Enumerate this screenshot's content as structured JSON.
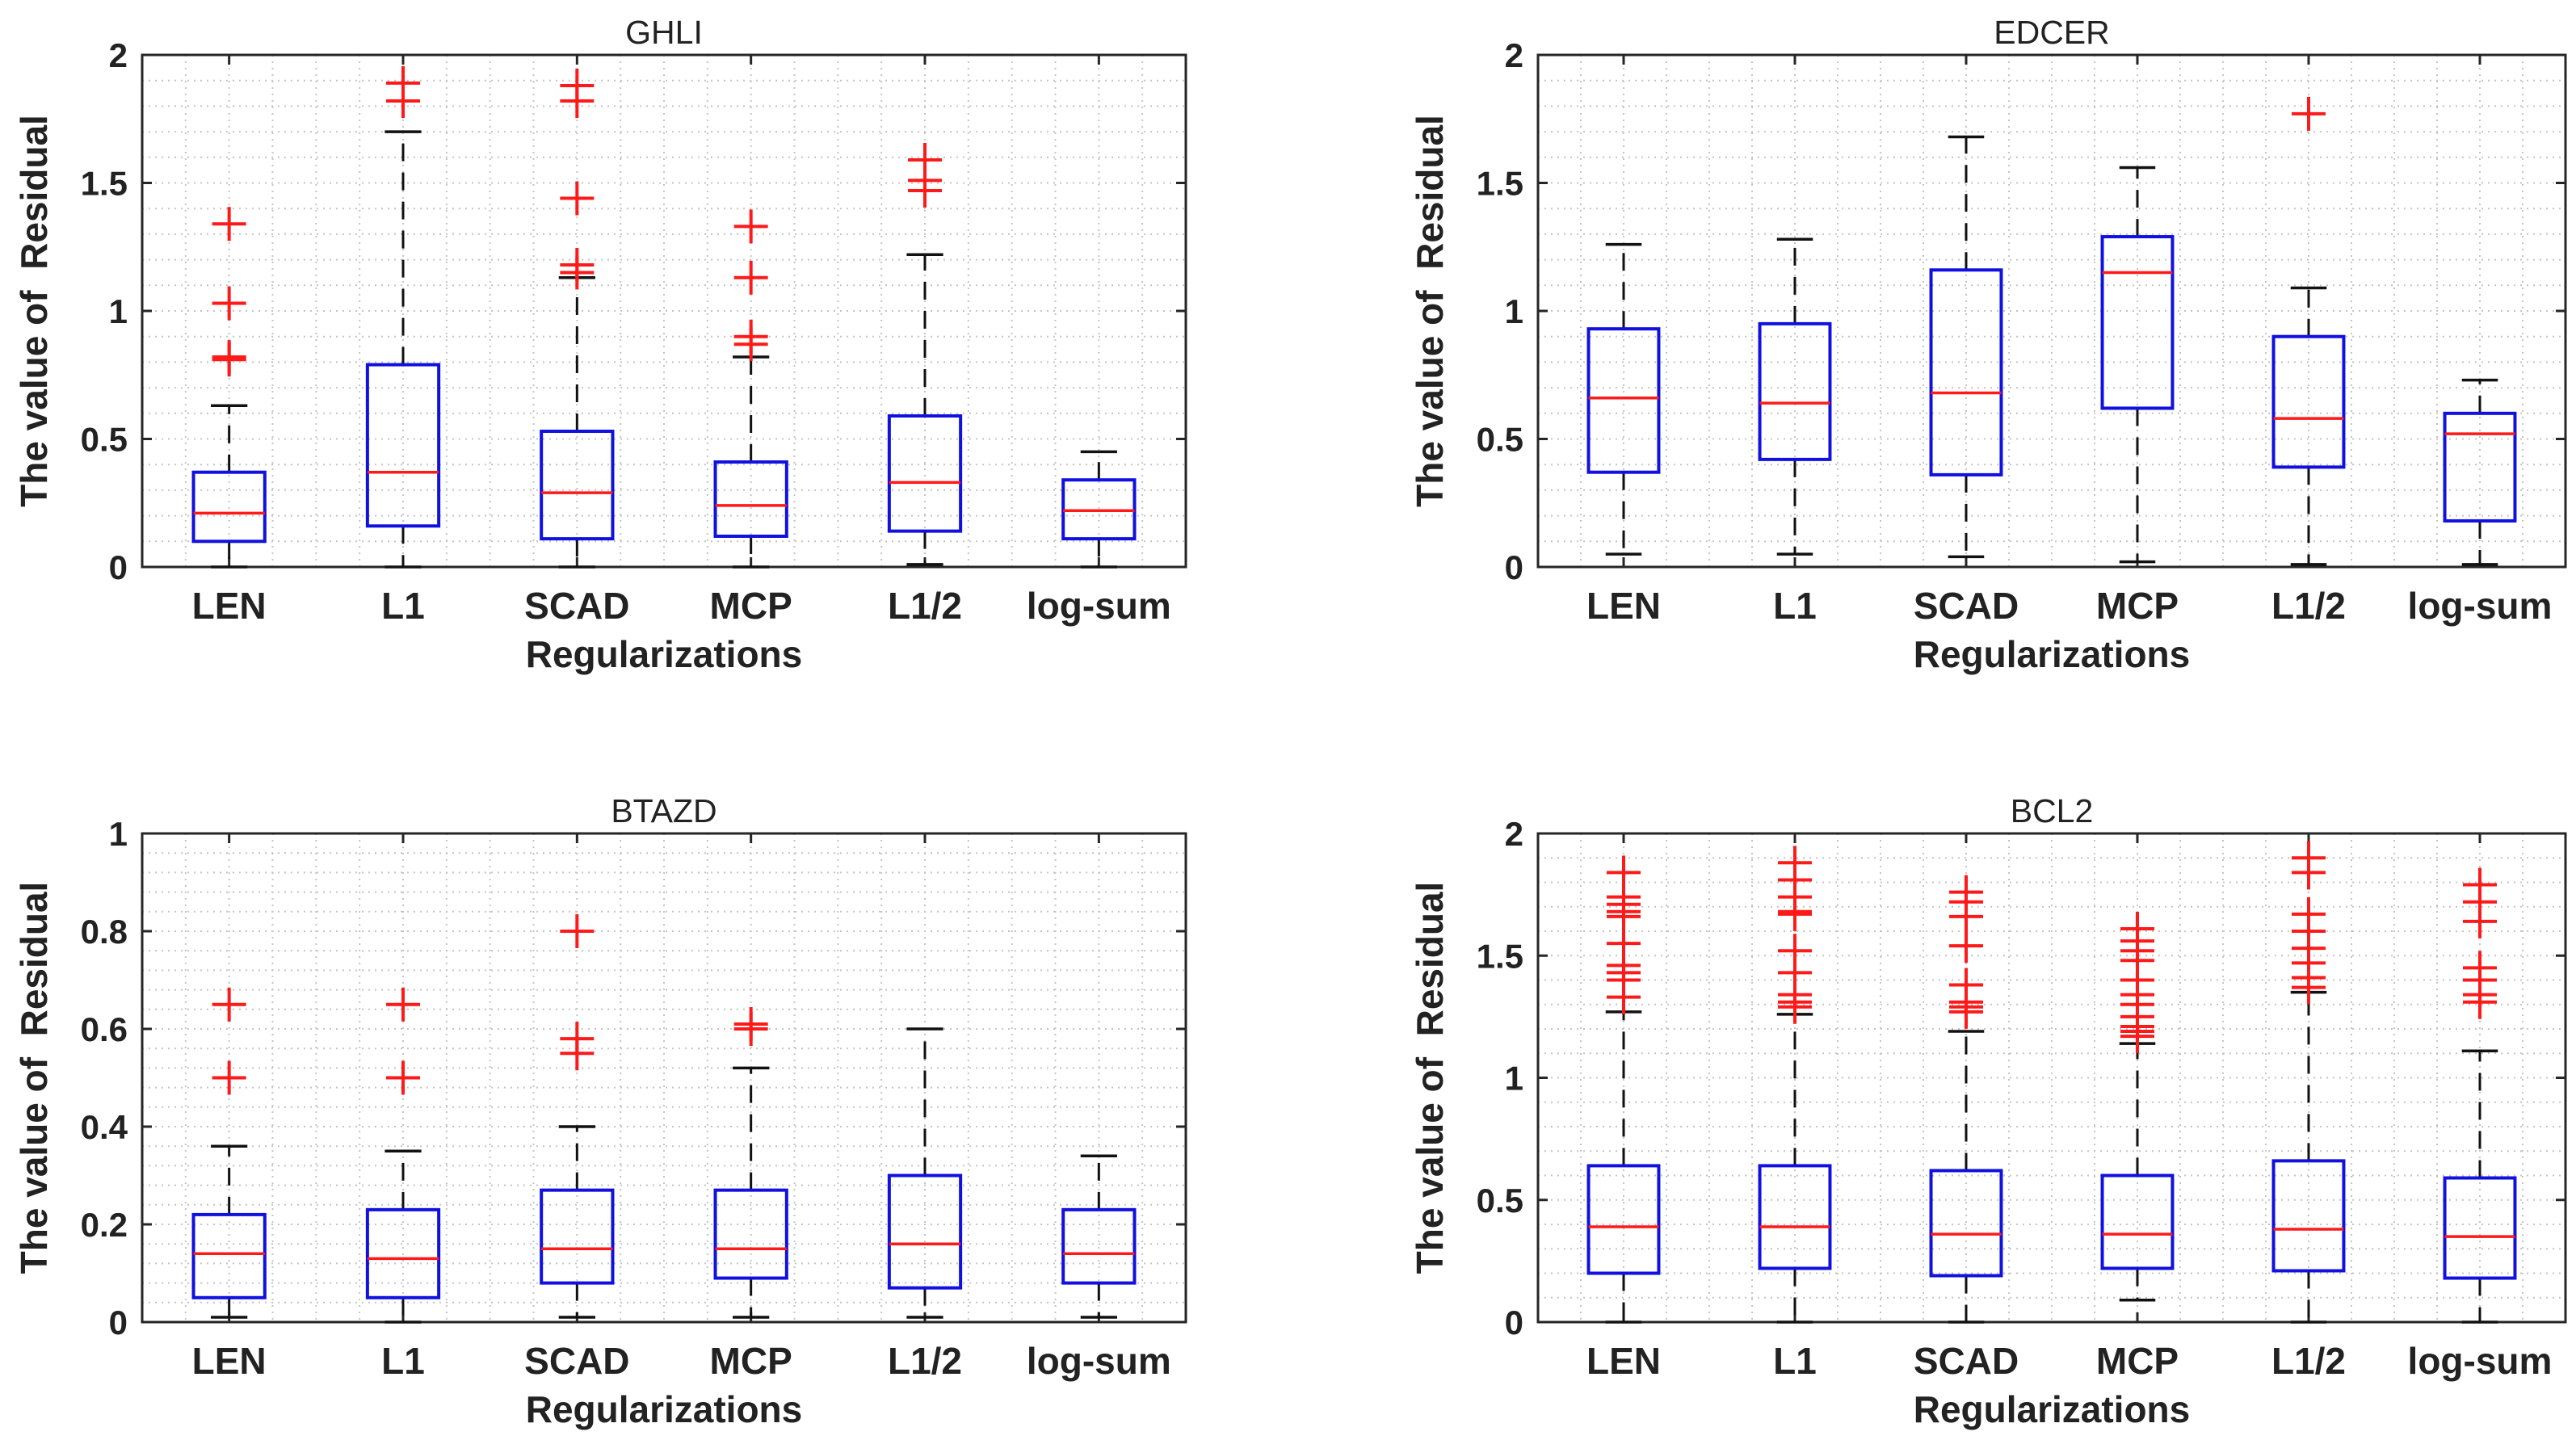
{
  "chart_data": [
    {
      "type": "box",
      "title": "GHLI",
      "xlabel": "Regularizations",
      "ylabel": "The value of  Residual",
      "ylim": [
        0,
        2
      ],
      "yticks": [
        0,
        0.5,
        1,
        1.5,
        2
      ],
      "ytick_labels": [
        "0",
        "0.5",
        "1",
        "1.5",
        "2"
      ],
      "categories": [
        "LEN",
        "L1",
        "SCAD",
        "MCP",
        "L1/2",
        "log-sum"
      ],
      "boxes": [
        {
          "lower_whisker": 0.0,
          "q1": 0.1,
          "median": 0.21,
          "q3": 0.37,
          "upper_whisker": 0.63,
          "outliers": [
            0.81,
            0.82,
            1.03,
            1.34
          ]
        },
        {
          "lower_whisker": 0.0,
          "q1": 0.16,
          "median": 0.37,
          "q3": 0.79,
          "upper_whisker": 1.7,
          "outliers": [
            1.82,
            1.89
          ]
        },
        {
          "lower_whisker": 0.0,
          "q1": 0.11,
          "median": 0.29,
          "q3": 0.53,
          "upper_whisker": 1.13,
          "outliers": [
            1.15,
            1.18,
            1.44,
            1.82,
            1.88
          ]
        },
        {
          "lower_whisker": 0.0,
          "q1": 0.12,
          "median": 0.24,
          "q3": 0.41,
          "upper_whisker": 0.82,
          "outliers": [
            0.87,
            0.9,
            1.13,
            1.33
          ]
        },
        {
          "lower_whisker": 0.01,
          "q1": 0.14,
          "median": 0.33,
          "q3": 0.59,
          "upper_whisker": 1.22,
          "outliers": [
            1.47,
            1.51,
            1.59
          ]
        },
        {
          "lower_whisker": 0.0,
          "q1": 0.11,
          "median": 0.22,
          "q3": 0.34,
          "upper_whisker": 0.45,
          "outliers": []
        }
      ]
    },
    {
      "type": "box",
      "title": "EDCER",
      "xlabel": "Regularizations",
      "ylabel": "The value of  Residual",
      "ylim": [
        0,
        2
      ],
      "yticks": [
        0,
        0.5,
        1,
        1.5,
        2
      ],
      "ytick_labels": [
        "0",
        "0.5",
        "1",
        "1.5",
        "2"
      ],
      "categories": [
        "LEN",
        "L1",
        "SCAD",
        "MCP",
        "L1/2",
        "log-sum"
      ],
      "boxes": [
        {
          "lower_whisker": 0.05,
          "q1": 0.37,
          "median": 0.66,
          "q3": 0.93,
          "upper_whisker": 1.26,
          "outliers": []
        },
        {
          "lower_whisker": 0.05,
          "q1": 0.42,
          "median": 0.64,
          "q3": 0.95,
          "upper_whisker": 1.28,
          "outliers": []
        },
        {
          "lower_whisker": 0.04,
          "q1": 0.36,
          "median": 0.68,
          "q3": 1.16,
          "upper_whisker": 1.68,
          "outliers": []
        },
        {
          "lower_whisker": 0.02,
          "q1": 0.62,
          "median": 1.15,
          "q3": 1.29,
          "upper_whisker": 1.56,
          "outliers": []
        },
        {
          "lower_whisker": 0.01,
          "q1": 0.39,
          "median": 0.58,
          "q3": 0.9,
          "upper_whisker": 1.09,
          "outliers": [
            1.77
          ]
        },
        {
          "lower_whisker": 0.01,
          "q1": 0.18,
          "median": 0.52,
          "q3": 0.6,
          "upper_whisker": 0.73,
          "outliers": []
        }
      ]
    },
    {
      "type": "box",
      "title": "BTAZD",
      "xlabel": "Regularizations",
      "ylabel": "The value of  Residual",
      "ylim": [
        0,
        1
      ],
      "yticks": [
        0,
        0.2,
        0.4,
        0.6,
        0.8,
        1
      ],
      "ytick_labels": [
        "0",
        "0.2",
        "0.4",
        "0.6",
        "0.8",
        "1"
      ],
      "categories": [
        "LEN",
        "L1",
        "SCAD",
        "MCP",
        "L1/2",
        "log-sum"
      ],
      "boxes": [
        {
          "lower_whisker": 0.01,
          "q1": 0.05,
          "median": 0.14,
          "q3": 0.22,
          "upper_whisker": 0.36,
          "outliers": [
            0.5,
            0.65
          ]
        },
        {
          "lower_whisker": 0.0,
          "q1": 0.05,
          "median": 0.13,
          "q3": 0.23,
          "upper_whisker": 0.35,
          "outliers": [
            0.5,
            0.65
          ]
        },
        {
          "lower_whisker": 0.01,
          "q1": 0.08,
          "median": 0.15,
          "q3": 0.27,
          "upper_whisker": 0.4,
          "outliers": [
            0.55,
            0.58,
            0.8
          ]
        },
        {
          "lower_whisker": 0.01,
          "q1": 0.09,
          "median": 0.15,
          "q3": 0.27,
          "upper_whisker": 0.52,
          "outliers": [
            0.6,
            0.61
          ]
        },
        {
          "lower_whisker": 0.01,
          "q1": 0.07,
          "median": 0.16,
          "q3": 0.3,
          "upper_whisker": 0.6,
          "outliers": []
        },
        {
          "lower_whisker": 0.01,
          "q1": 0.08,
          "median": 0.14,
          "q3": 0.23,
          "upper_whisker": 0.34,
          "outliers": []
        }
      ]
    },
    {
      "type": "box",
      "title": "BCL2",
      "xlabel": "Regularizations",
      "ylabel": "The value of  Residual",
      "ylim": [
        0,
        2
      ],
      "yticks": [
        0,
        0.5,
        1,
        1.5,
        2
      ],
      "ytick_labels": [
        "0",
        "0.5",
        "1",
        "1.5",
        "2"
      ],
      "categories": [
        "LEN",
        "L1",
        "SCAD",
        "MCP",
        "L1/2",
        "log-sum"
      ],
      "boxes": [
        {
          "lower_whisker": 0.0,
          "q1": 0.2,
          "median": 0.39,
          "q3": 0.64,
          "upper_whisker": 1.27,
          "outliers": [
            1.33,
            1.4,
            1.43,
            1.46,
            1.55,
            1.66,
            1.68,
            1.71,
            1.74,
            1.84
          ]
        },
        {
          "lower_whisker": 0.0,
          "q1": 0.22,
          "median": 0.39,
          "q3": 0.64,
          "upper_whisker": 1.26,
          "outliers": [
            1.29,
            1.31,
            1.34,
            1.43,
            1.52,
            1.67,
            1.68,
            1.74,
            1.81,
            1.88
          ]
        },
        {
          "lower_whisker": 0.0,
          "q1": 0.19,
          "median": 0.36,
          "q3": 0.62,
          "upper_whisker": 1.19,
          "outliers": [
            1.27,
            1.29,
            1.31,
            1.38,
            1.54,
            1.66,
            1.72,
            1.76
          ]
        },
        {
          "lower_whisker": 0.09,
          "q1": 0.22,
          "median": 0.36,
          "q3": 0.6,
          "upper_whisker": 1.14,
          "outliers": [
            1.17,
            1.19,
            1.21,
            1.25,
            1.3,
            1.34,
            1.4,
            1.48,
            1.52,
            1.56,
            1.61
          ]
        },
        {
          "lower_whisker": 0.0,
          "q1": 0.21,
          "median": 0.38,
          "q3": 0.66,
          "upper_whisker": 1.35,
          "outliers": [
            1.37,
            1.41,
            1.47,
            1.53,
            1.6,
            1.67,
            1.84,
            1.9
          ]
        },
        {
          "lower_whisker": 0.0,
          "q1": 0.18,
          "median": 0.35,
          "q3": 0.59,
          "upper_whisker": 1.11,
          "outliers": [
            1.31,
            1.34,
            1.4,
            1.45,
            1.64,
            1.72,
            1.79
          ]
        }
      ]
    }
  ]
}
